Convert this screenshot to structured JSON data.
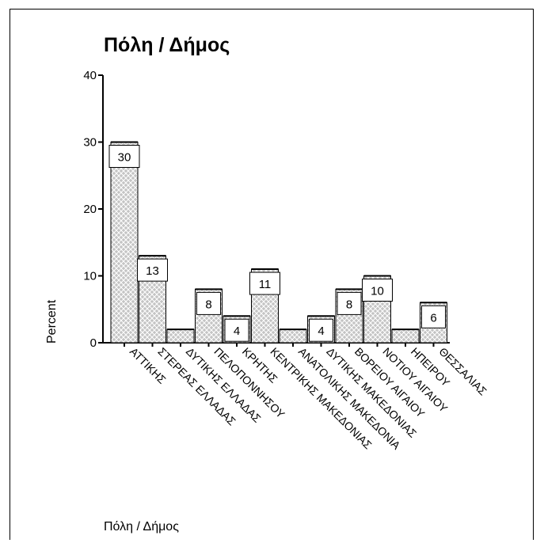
{
  "chart_data": {
    "type": "bar",
    "title": "Πόλη / Δήμος",
    "xlabel": "Πόλη / Δήμος",
    "ylabel": "Percent",
    "ylim": [
      0,
      40
    ],
    "yticks": [
      0,
      10,
      20,
      30,
      40
    ],
    "categories": [
      "ΑΤΤΙΚΗΣ",
      "ΣΤΕΡΕΑΣ ΕΛΛΑΔΑΣ",
      "ΔΥΤΙΚΗΣ ΕΛΛΑΔΑΣ",
      "ΠΕΛΟΠΟΝΝΗΣΟΥ",
      "ΚΡΗΤΗΣ",
      "ΚΕΝΤΡΙΚΗΣ ΜΑΚΕΔΟΝΙΑΣ",
      "ΑΝΑΤΟΛΙΚΗΣ ΜΑΚΕΔΟΝΙΑ",
      "ΔΥΤΙΚΗΣ ΜΑΚΕΔΟΝΙΑΣ",
      "ΒΟΡΕΙΟΥ ΑΙΓΑΙΟΥ",
      "ΝΟΤΙΟΥ ΑΙΓΑΙΟΥ",
      "ΗΠΕΙΡΟΥ",
      "ΘΕΣΣΑΛΙΑΣ"
    ],
    "values": [
      30,
      13,
      2,
      8,
      4,
      11,
      2,
      4,
      8,
      10,
      2,
      6
    ],
    "data_labels": [
      "30",
      "13",
      "",
      "8",
      "4",
      "11",
      "",
      "4",
      "8",
      "10",
      "",
      "6"
    ],
    "grid": false,
    "colors": {
      "bar_fill": "#c8c8c8",
      "bar_hatch": "#ffffff",
      "axis": "#000000"
    }
  }
}
